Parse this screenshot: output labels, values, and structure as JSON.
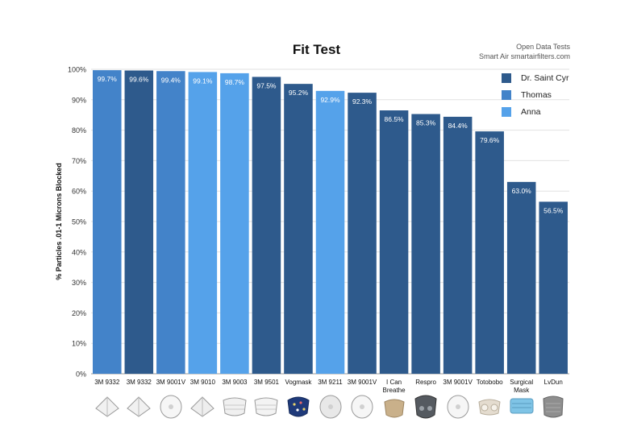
{
  "header": {
    "title": "Fit Test",
    "source_line1": "Open Data Tests",
    "source_line2": "Smart Air smartairfilters.com"
  },
  "legend": {
    "items": [
      {
        "label": "Dr. Saint Cyr",
        "color": "#2e5a8c"
      },
      {
        "label": "Thomas",
        "color": "#4383c9"
      },
      {
        "label": "Anna",
        "color": "#55a2ea"
      }
    ]
  },
  "chart_data": {
    "type": "bar",
    "title": "Fit Test",
    "ylabel": "% Particles .01-1 Microns Blocked",
    "xlabel": "",
    "ylim": [
      0,
      100
    ],
    "yticks": [
      "0%",
      "10%",
      "20%",
      "30%",
      "40%",
      "50%",
      "60%",
      "70%",
      "80%",
      "90%",
      "100%"
    ],
    "grid": true,
    "legend_position": "top-right",
    "categories": [
      "3M 9332",
      "3M 9332",
      "3M 9001V",
      "3M 9010",
      "3M 9003",
      "3M 9501",
      "Vogmask",
      "3M 9211",
      "3M 9001V",
      "I Can Breathe",
      "Respro",
      "3M 9001V",
      "Totobobo",
      "Surgical Mask",
      "LvDun"
    ],
    "category_lines": [
      [
        "3M 9332"
      ],
      [
        "3M 9332"
      ],
      [
        "3M 9001V"
      ],
      [
        "3M 9010"
      ],
      [
        "3M 9003"
      ],
      [
        "3M 9501"
      ],
      [
        "Vogmask"
      ],
      [
        "3M 9211"
      ],
      [
        "3M 9001V"
      ],
      [
        "I Can",
        "Breathe"
      ],
      [
        "Respro"
      ],
      [
        "3M 9001V"
      ],
      [
        "Totobobo"
      ],
      [
        "Surgical",
        "Mask"
      ],
      [
        "LvDun"
      ]
    ],
    "values": [
      99.7,
      99.6,
      99.4,
      99.1,
      98.7,
      97.5,
      95.2,
      92.9,
      92.3,
      86.5,
      85.3,
      84.4,
      79.6,
      63.0,
      56.5
    ],
    "value_labels": [
      "99.7%",
      "99.6%",
      "99.4%",
      "99.1%",
      "98.7%",
      "97.5%",
      "95.2%",
      "92.9%",
      "92.3%",
      "86.5%",
      "85.3%",
      "84.4%",
      "79.6%",
      "63.0%",
      "56.5%"
    ],
    "tester": [
      "Thomas",
      "Dr. Saint Cyr",
      "Thomas",
      "Anna",
      "Anna",
      "Dr. Saint Cyr",
      "Dr. Saint Cyr",
      "Anna",
      "Dr. Saint Cyr",
      "Dr. Saint Cyr",
      "Dr. Saint Cyr",
      "Dr. Saint Cyr",
      "Dr. Saint Cyr",
      "Dr. Saint Cyr",
      "Dr. Saint Cyr"
    ]
  },
  "masks": [
    {
      "icon": "folded-respirator-icon",
      "color": "#f1f1f1"
    },
    {
      "icon": "folded-respirator-icon",
      "color": "#f1f1f1"
    },
    {
      "icon": "cup-respirator-icon",
      "color": "#f6f6f6"
    },
    {
      "icon": "folded-respirator-icon",
      "color": "#eeeeee"
    },
    {
      "icon": "pleated-respirator-icon",
      "color": "#f0f0f0"
    },
    {
      "icon": "pleated-respirator-icon",
      "color": "#f3f3f3"
    },
    {
      "icon": "patterned-mask-icon",
      "color": "#1f3a7a"
    },
    {
      "icon": "cup-respirator-icon",
      "color": "#e8e8e8"
    },
    {
      "icon": "cup-respirator-icon",
      "color": "#f6f6f6"
    },
    {
      "icon": "cloth-mask-icon",
      "color": "#c9b08a"
    },
    {
      "icon": "sport-mask-icon",
      "color": "#555a60"
    },
    {
      "icon": "cup-respirator-icon",
      "color": "#f6f6f6"
    },
    {
      "icon": "silicone-mask-icon",
      "color": "#e4dccf"
    },
    {
      "icon": "surgical-mask-icon",
      "color": "#7fc4e6"
    },
    {
      "icon": "mesh-mask-icon",
      "color": "#8e8e8e"
    }
  ]
}
